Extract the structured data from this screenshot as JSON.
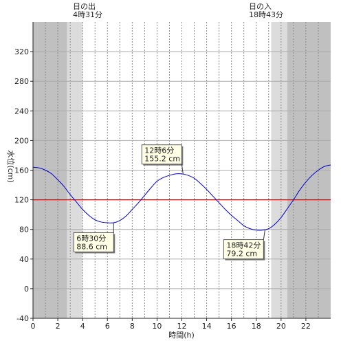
{
  "chart_data": {
    "type": "line",
    "xlabel": "時間(h)",
    "ylabel": "水位(cm)",
    "xlim": [
      0,
      24
    ],
    "ylim": [
      -40,
      360
    ],
    "x_ticks": [
      0,
      2,
      4,
      6,
      8,
      10,
      12,
      14,
      16,
      18,
      20,
      22
    ],
    "y_ticks": [
      -40,
      0,
      40,
      80,
      120,
      160,
      200,
      240,
      280,
      320
    ],
    "grid": {
      "vertical_dotted_every_hours": 1,
      "horizontal": true
    },
    "shading": {
      "dark_color": "#c0c0c0",
      "light_color": "#dcdcdc",
      "dark_before": 2.75,
      "light_before": 4.0,
      "light_after": 19.2,
      "dark_after": 20.5
    },
    "reference_line": {
      "y": 120,
      "color": "#dd0000"
    },
    "series": [
      {
        "color": "#0000cc",
        "x": [
          0,
          0.5,
          1,
          1.5,
          2,
          2.5,
          3,
          3.5,
          4,
          4.5,
          5,
          5.5,
          6,
          6.5,
          7,
          7.5,
          8,
          8.5,
          9,
          9.5,
          10,
          10.5,
          11,
          11.5,
          12,
          12.5,
          13,
          13.5,
          14,
          14.5,
          15,
          15.5,
          16,
          16.5,
          17,
          17.5,
          18,
          18.5,
          19,
          19.5,
          20,
          20.5,
          21,
          21.5,
          22,
          22.5,
          23,
          23.5,
          24
        ],
        "y": [
          164,
          163,
          160,
          155,
          147,
          138,
          127,
          117,
          107,
          99,
          93,
          90,
          89,
          89,
          92,
          98,
          107,
          116,
          126,
          136,
          145,
          150,
          153,
          155,
          155,
          153,
          149,
          142,
          134,
          125,
          116,
          107,
          99,
          92,
          85,
          81,
          79,
          79,
          81,
          87,
          96,
          108,
          120,
          133,
          144,
          153,
          160,
          165,
          167
        ]
      }
    ],
    "sun": {
      "sunrise_title": "日の出",
      "sunrise_time": "4時31分",
      "sunset_title": "日の入",
      "sunset_time": "18時43分"
    },
    "annotations": [
      {
        "time": "6時30分",
        "value": "88.6 cm",
        "x": 6.5,
        "y": 88.6
      },
      {
        "time": "12時6分",
        "value": "155.2 cm",
        "x": 12.1,
        "y": 155.2
      },
      {
        "time": "18時42分",
        "value": "79.2 cm",
        "x": 18.7,
        "y": 79.2
      }
    ]
  }
}
